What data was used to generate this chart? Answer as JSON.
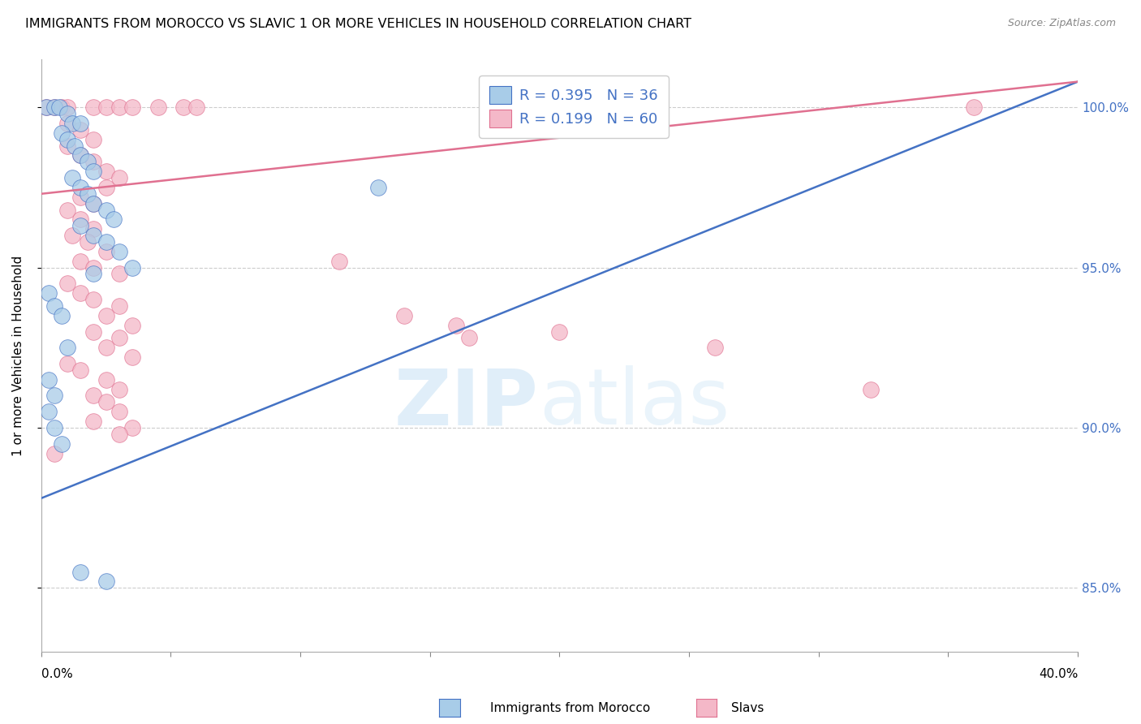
{
  "title": "IMMIGRANTS FROM MOROCCO VS SLAVIC 1 OR MORE VEHICLES IN HOUSEHOLD CORRELATION CHART",
  "source": "Source: ZipAtlas.com",
  "ylabel": "1 or more Vehicles in Household",
  "legend_label1": "Immigrants from Morocco",
  "legend_label2": "Slavs",
  "legend_R1": "R = 0.395",
  "legend_N1": "N = 36",
  "legend_R2": "R = 0.199",
  "legend_N2": "N = 60",
  "color_blue": "#a8cce8",
  "color_pink": "#f4b8c8",
  "line_blue": "#4472c4",
  "line_pink": "#e07090",
  "ytick_vals": [
    85.0,
    90.0,
    95.0,
    100.0
  ],
  "ytick_labels": [
    "85.0%",
    "90.0%",
    "95.0%",
    "100.0%"
  ],
  "xlim": [
    0,
    40
  ],
  "ylim": [
    83.0,
    101.5
  ],
  "blue_trend_x": [
    0,
    40
  ],
  "blue_trend_y": [
    87.8,
    100.8
  ],
  "pink_trend_x": [
    0,
    40
  ],
  "pink_trend_y": [
    97.3,
    100.8
  ],
  "blue_points": [
    [
      0.2,
      100.0
    ],
    [
      0.5,
      100.0
    ],
    [
      0.7,
      100.0
    ],
    [
      1.0,
      99.8
    ],
    [
      1.2,
      99.5
    ],
    [
      1.5,
      99.5
    ],
    [
      0.8,
      99.2
    ],
    [
      1.0,
      99.0
    ],
    [
      1.3,
      98.8
    ],
    [
      1.5,
      98.5
    ],
    [
      1.8,
      98.3
    ],
    [
      2.0,
      98.0
    ],
    [
      1.2,
      97.8
    ],
    [
      1.5,
      97.5
    ],
    [
      1.8,
      97.3
    ],
    [
      2.0,
      97.0
    ],
    [
      2.5,
      96.8
    ],
    [
      2.8,
      96.5
    ],
    [
      1.5,
      96.3
    ],
    [
      2.0,
      96.0
    ],
    [
      2.5,
      95.8
    ],
    [
      3.0,
      95.5
    ],
    [
      3.5,
      95.0
    ],
    [
      2.0,
      94.8
    ],
    [
      0.3,
      94.2
    ],
    [
      0.5,
      93.8
    ],
    [
      0.8,
      93.5
    ],
    [
      1.0,
      92.5
    ],
    [
      0.3,
      91.5
    ],
    [
      0.5,
      91.0
    ],
    [
      0.3,
      90.5
    ],
    [
      0.5,
      90.0
    ],
    [
      0.8,
      89.5
    ],
    [
      1.5,
      85.5
    ],
    [
      2.5,
      85.2
    ],
    [
      13.0,
      97.5
    ]
  ],
  "pink_points": [
    [
      0.2,
      100.0
    ],
    [
      0.5,
      100.0
    ],
    [
      0.8,
      100.0
    ],
    [
      1.0,
      100.0
    ],
    [
      2.0,
      100.0
    ],
    [
      2.5,
      100.0
    ],
    [
      3.0,
      100.0
    ],
    [
      3.5,
      100.0
    ],
    [
      4.5,
      100.0
    ],
    [
      5.5,
      100.0
    ],
    [
      6.0,
      100.0
    ],
    [
      1.0,
      99.5
    ],
    [
      1.5,
      99.3
    ],
    [
      2.0,
      99.0
    ],
    [
      1.0,
      98.8
    ],
    [
      1.5,
      98.5
    ],
    [
      2.0,
      98.3
    ],
    [
      2.5,
      98.0
    ],
    [
      3.0,
      97.8
    ],
    [
      2.5,
      97.5
    ],
    [
      1.5,
      97.2
    ],
    [
      2.0,
      97.0
    ],
    [
      1.0,
      96.8
    ],
    [
      1.5,
      96.5
    ],
    [
      2.0,
      96.2
    ],
    [
      1.2,
      96.0
    ],
    [
      1.8,
      95.8
    ],
    [
      2.5,
      95.5
    ],
    [
      1.5,
      95.2
    ],
    [
      2.0,
      95.0
    ],
    [
      3.0,
      94.8
    ],
    [
      1.0,
      94.5
    ],
    [
      1.5,
      94.2
    ],
    [
      2.0,
      94.0
    ],
    [
      3.0,
      93.8
    ],
    [
      2.5,
      93.5
    ],
    [
      3.5,
      93.2
    ],
    [
      2.0,
      93.0
    ],
    [
      3.0,
      92.8
    ],
    [
      2.5,
      92.5
    ],
    [
      3.5,
      92.2
    ],
    [
      1.0,
      92.0
    ],
    [
      1.5,
      91.8
    ],
    [
      2.5,
      91.5
    ],
    [
      3.0,
      91.2
    ],
    [
      2.0,
      91.0
    ],
    [
      2.5,
      90.8
    ],
    [
      3.0,
      90.5
    ],
    [
      2.0,
      90.2
    ],
    [
      3.5,
      90.0
    ],
    [
      3.0,
      89.8
    ],
    [
      0.5,
      89.2
    ],
    [
      11.5,
      95.2
    ],
    [
      14.0,
      93.5
    ],
    [
      16.0,
      93.2
    ],
    [
      16.5,
      92.8
    ],
    [
      20.0,
      93.0
    ],
    [
      26.0,
      92.5
    ],
    [
      32.0,
      91.2
    ],
    [
      36.0,
      100.0
    ]
  ]
}
